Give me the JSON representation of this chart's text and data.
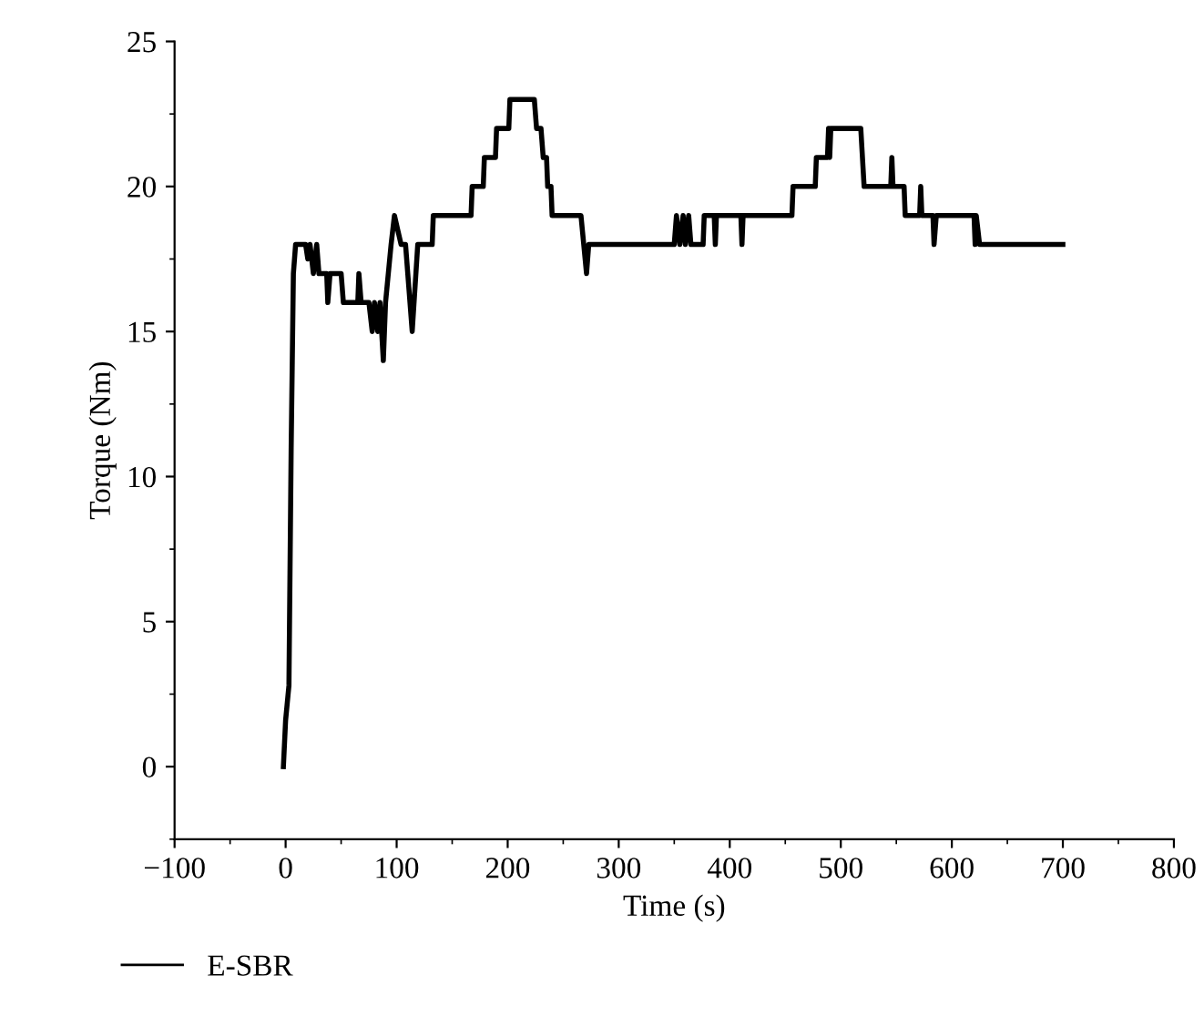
{
  "chart_data": {
    "type": "line",
    "xlabel": "Time (s)",
    "ylabel": "Torque (Nm)",
    "xlim": [
      -100,
      800
    ],
    "ylim": [
      -2.5,
      25
    ],
    "xticks": [
      {
        "value": -100,
        "label": "−100"
      },
      0,
      100,
      200,
      300,
      400,
      500,
      600,
      700,
      800
    ],
    "yticks": [
      0,
      5,
      10,
      15,
      20,
      25
    ],
    "grid": false,
    "legend": "bottom left",
    "series": [
      {
        "name": "E-SBR",
        "color": "#000000",
        "x": [
          -2,
          0,
          3,
          5,
          7,
          9,
          18,
          20,
          22,
          25,
          28,
          30,
          37,
          38,
          40,
          50,
          52,
          60,
          65,
          66,
          68,
          75,
          78,
          80,
          83,
          85,
          88,
          90,
          95,
          98,
          104,
          108,
          114,
          119,
          132,
          133,
          167,
          168,
          178,
          179,
          189,
          190,
          201,
          202,
          224,
          226,
          230,
          232,
          235,
          236,
          239,
          240,
          266,
          271,
          273,
          350,
          352,
          355,
          358,
          360,
          363,
          365,
          368,
          376,
          377,
          386,
          387,
          388,
          410,
          411,
          412,
          456,
          457,
          477,
          478,
          488,
          489,
          490,
          491,
          492,
          518,
          521,
          545,
          546,
          547,
          557,
          558,
          571,
          572,
          573,
          583,
          584,
          586,
          620,
          621,
          622,
          625,
          628,
          700
        ],
        "values": [
          0,
          1.6,
          2.8,
          11,
          17,
          18,
          18,
          17.5,
          18,
          17,
          18,
          17,
          17,
          16,
          17,
          17,
          16,
          16,
          16,
          17,
          16,
          16,
          15,
          16,
          15,
          16,
          14,
          16,
          18,
          19,
          18,
          18,
          15,
          18,
          18,
          19,
          19,
          20,
          20,
          21,
          21,
          22,
          22,
          23,
          23,
          22,
          22,
          21,
          21,
          20,
          20,
          19,
          19,
          17,
          18,
          18,
          19,
          18,
          19,
          18,
          19,
          18,
          18,
          18,
          19,
          19,
          18,
          19,
          19,
          18,
          19,
          19,
          20,
          20,
          21,
          21,
          22,
          21,
          22,
          22,
          22,
          20,
          20,
          21,
          20,
          20,
          19,
          19,
          20,
          19,
          19,
          18,
          19,
          19,
          18,
          19,
          18,
          18,
          18
        ]
      }
    ]
  }
}
